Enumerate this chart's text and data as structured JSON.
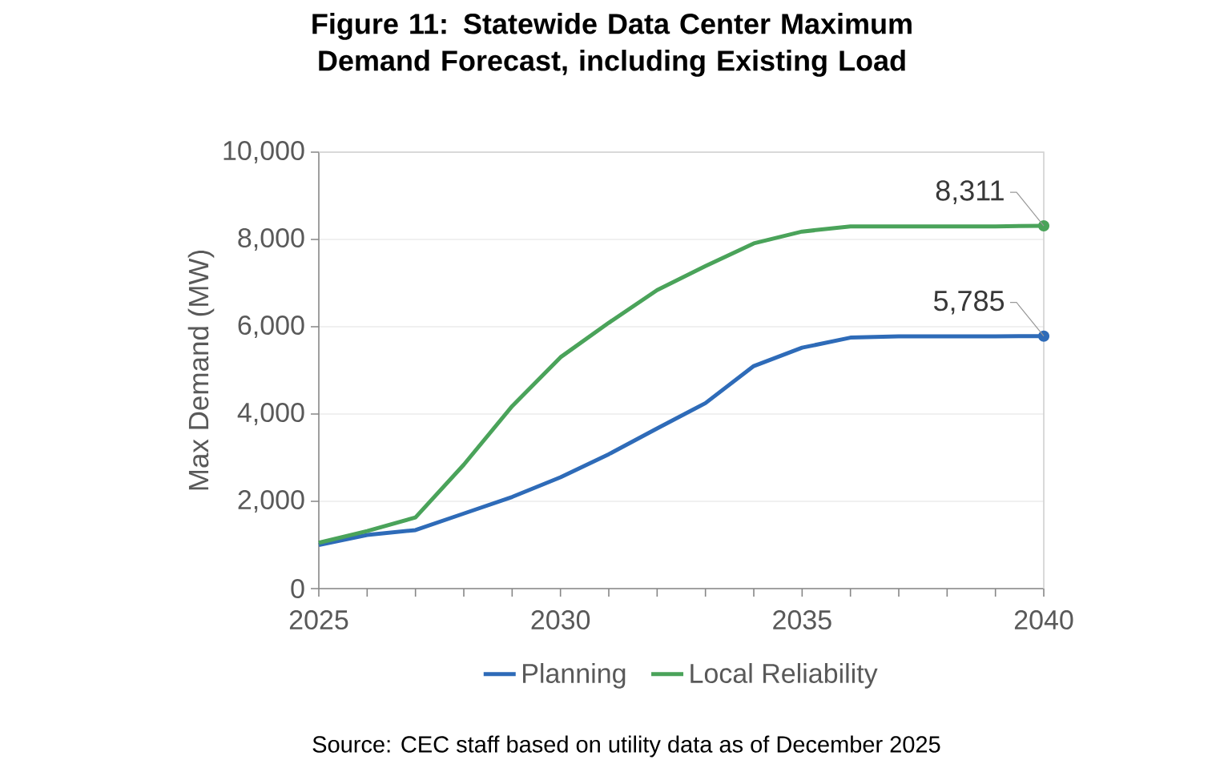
{
  "chart_data": {
    "type": "line",
    "title": "Figure 11: Statewide Data Center Maximum Demand Forecast, including Existing Load",
    "ylabel": "Max Demand (MW)",
    "x": [
      2025,
      2026,
      2027,
      2028,
      2029,
      2030,
      2031,
      2032,
      2033,
      2034,
      2035,
      2036,
      2037,
      2038,
      2039,
      2040
    ],
    "series": [
      {
        "name": "Planning",
        "color": "#2e6bb8",
        "values": [
          1000,
          1230,
          1340,
          1720,
          2100,
          2550,
          3080,
          3670,
          4250,
          5100,
          5520,
          5750,
          5780,
          5780,
          5780,
          5785
        ],
        "value_labels": [
          null,
          null,
          null,
          null,
          null,
          null,
          null,
          null,
          null,
          null,
          null,
          null,
          null,
          null,
          null,
          "5,785"
        ]
      },
      {
        "name": "Local Reliability",
        "color": "#4aa35a",
        "values": [
          1050,
          1320,
          1630,
          2840,
          4180,
          5300,
          6090,
          6840,
          7390,
          7910,
          8180,
          8300,
          8300,
          8300,
          8300,
          8311
        ],
        "value_labels": [
          null,
          null,
          null,
          null,
          null,
          null,
          null,
          null,
          null,
          null,
          null,
          null,
          null,
          null,
          null,
          "8,311"
        ]
      }
    ],
    "xlim": [
      2025,
      2040
    ],
    "xticks": [
      2025,
      {
        "value": 2026,
        "label": null
      },
      {
        "value": 2027,
        "label": null
      },
      {
        "value": 2028,
        "label": null
      },
      {
        "value": 2029,
        "label": null
      },
      2030,
      {
        "value": 2031,
        "label": null
      },
      {
        "value": 2032,
        "label": null
      },
      {
        "value": 2033,
        "label": null
      },
      {
        "value": 2034,
        "label": null
      },
      2035,
      {
        "value": 2036,
        "label": null
      },
      {
        "value": 2037,
        "label": null
      },
      {
        "value": 2038,
        "label": null
      },
      {
        "value": 2039,
        "label": null
      },
      2040
    ],
    "ylim": [
      0,
      10000
    ],
    "yticks": [
      0,
      {
        "value": 2000,
        "label": "2,000"
      },
      {
        "value": 4000,
        "label": "4,000"
      },
      {
        "value": 6000,
        "label": "6,000"
      },
      {
        "value": 8000,
        "label": "8,000"
      },
      {
        "value": 10000,
        "label": "10,000"
      }
    ],
    "grid": "y",
    "legend": "bottom",
    "annotations": [
      "Source: CEC staff based on utility data as of December 2025"
    ]
  }
}
